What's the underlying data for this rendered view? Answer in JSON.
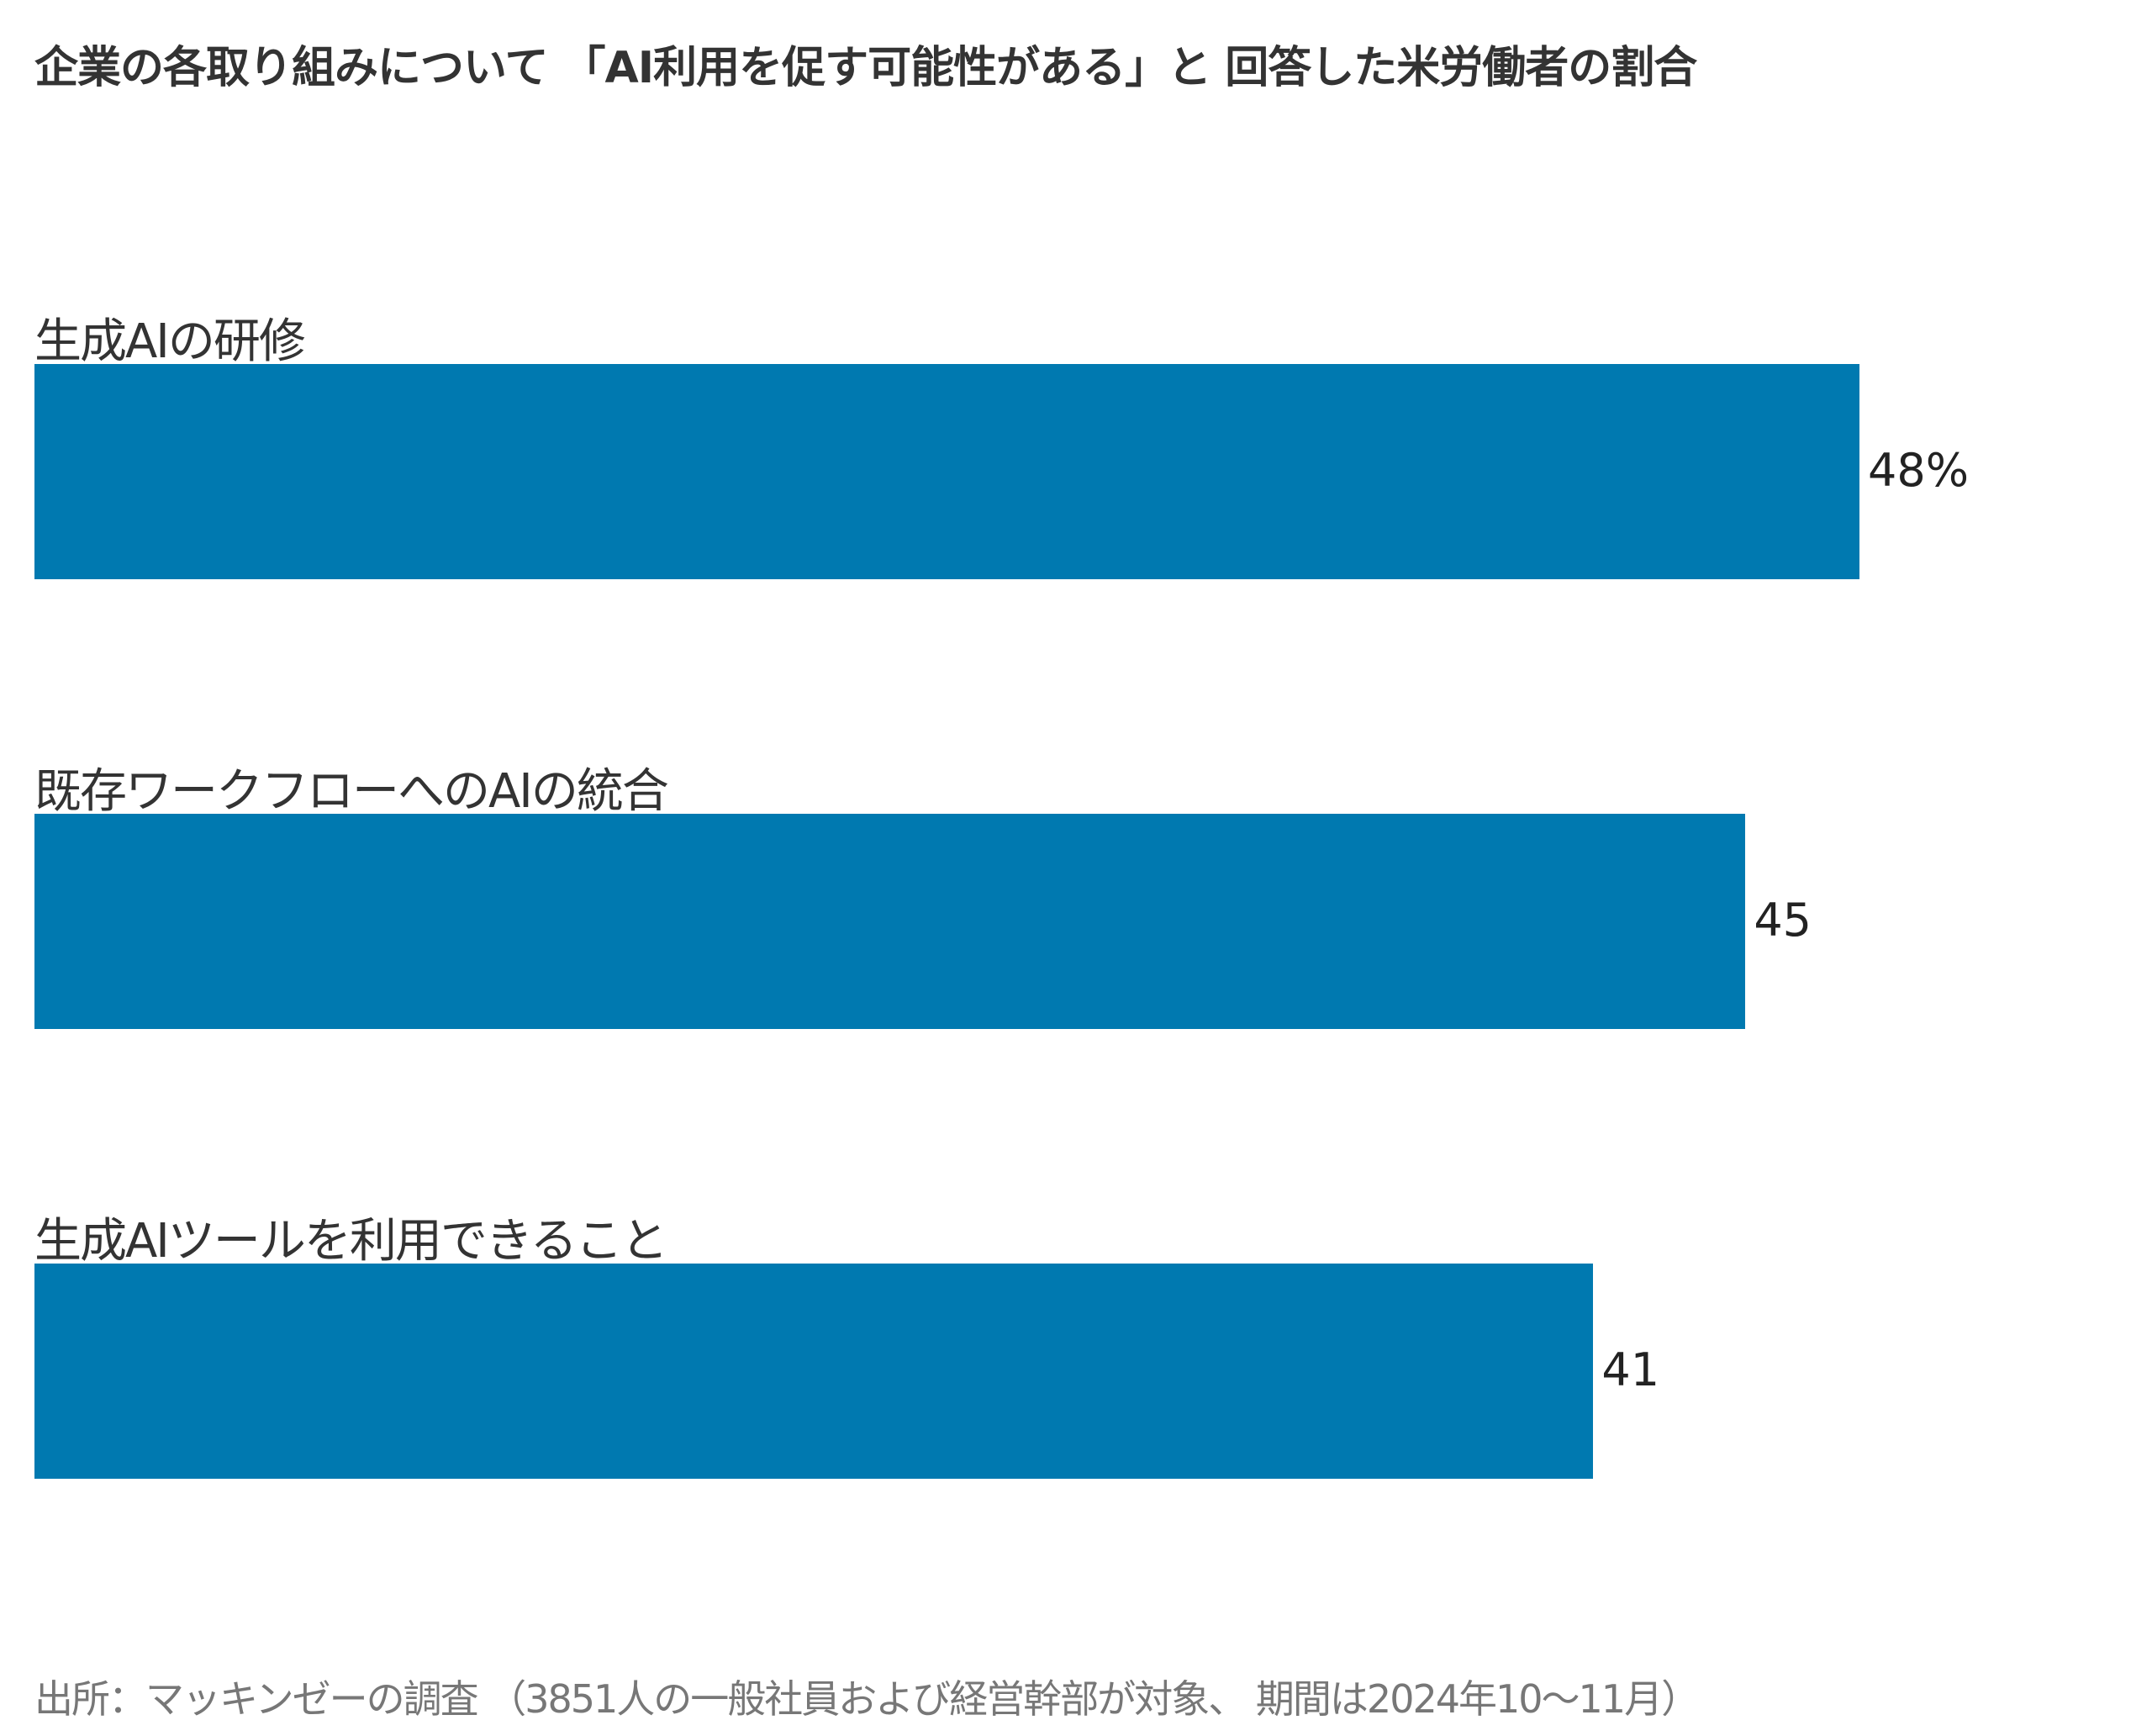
{
  "chart_data": {
    "type": "bar",
    "orientation": "horizontal",
    "title": "企業の各取り組みについて 「AI利用を促す可能性がある」と 回答した米労働者の割合",
    "categories": [
      "生成AIの研修",
      "既存ワークフローへのAIの統合",
      "生成AIツールを利用できること"
    ],
    "values": [
      48,
      45,
      41
    ],
    "value_labels": [
      "48%",
      "45",
      "41"
    ],
    "unit": "%",
    "xlim": [
      0,
      48
    ],
    "grid": false,
    "bar_color": "#0079B0",
    "source": "出所：マッキンゼーの調査 （3851人の一般社員および経営幹部が対象、 期間は2024年10～11月）"
  }
}
